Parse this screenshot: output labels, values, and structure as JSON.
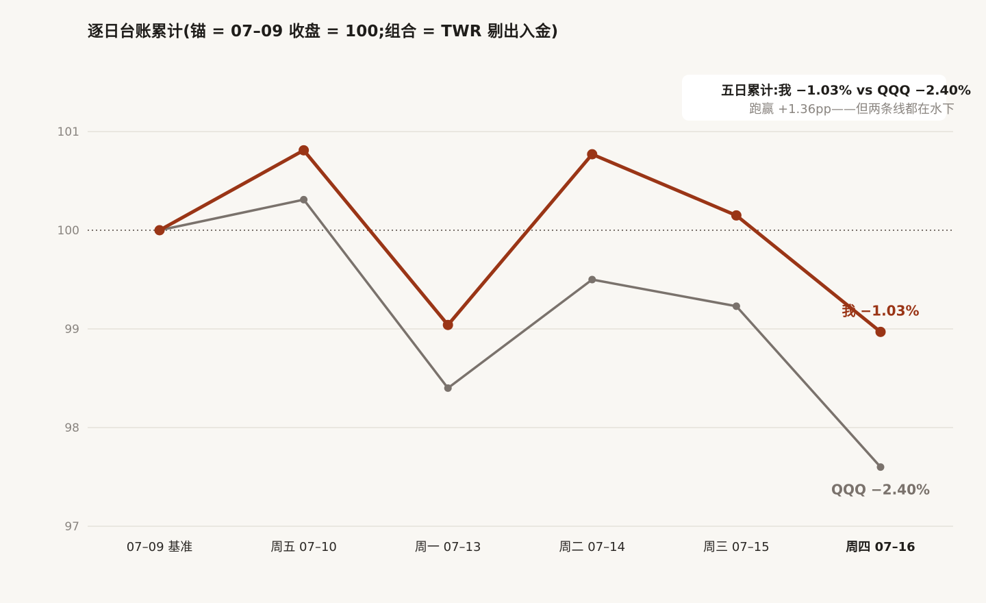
{
  "title": "逐日台账累计(锚 = 07–09 收盘 = 100;组合 = TWR 剔出入金)",
  "summary": {
    "line1": "五日累计:我 −1.03% vs QQQ −2.40%",
    "line2": "跑赢 +1.36pp——但两条线都在水下"
  },
  "colors": {
    "mine": "#9a3516",
    "qqq": "#7a726c",
    "grid": "#e6e2da",
    "baseline": "#7a726c",
    "background": "#f9f7f3"
  },
  "chart_data": {
    "type": "line",
    "categories": [
      "07–09 基准",
      "周五 07–10",
      "周一 07–13",
      "周二 07–14",
      "周三 07–15",
      "周四 07–16"
    ],
    "highlight_category": "周四 07–16",
    "ylim": [
      97,
      101
    ],
    "yticks": [
      "97",
      "98",
      "99",
      "100",
      "101"
    ],
    "baseline": 100,
    "grid": true,
    "series": [
      {
        "key": "qqq",
        "end_label": "QQQ −2.40%",
        "values": [
          100,
          100.31,
          98.4,
          99.5,
          99.23,
          97.6
        ]
      },
      {
        "key": "mine",
        "end_label": "我 −1.03%",
        "values": [
          100,
          100.81,
          99.04,
          100.77,
          100.15,
          98.97
        ]
      }
    ]
  }
}
